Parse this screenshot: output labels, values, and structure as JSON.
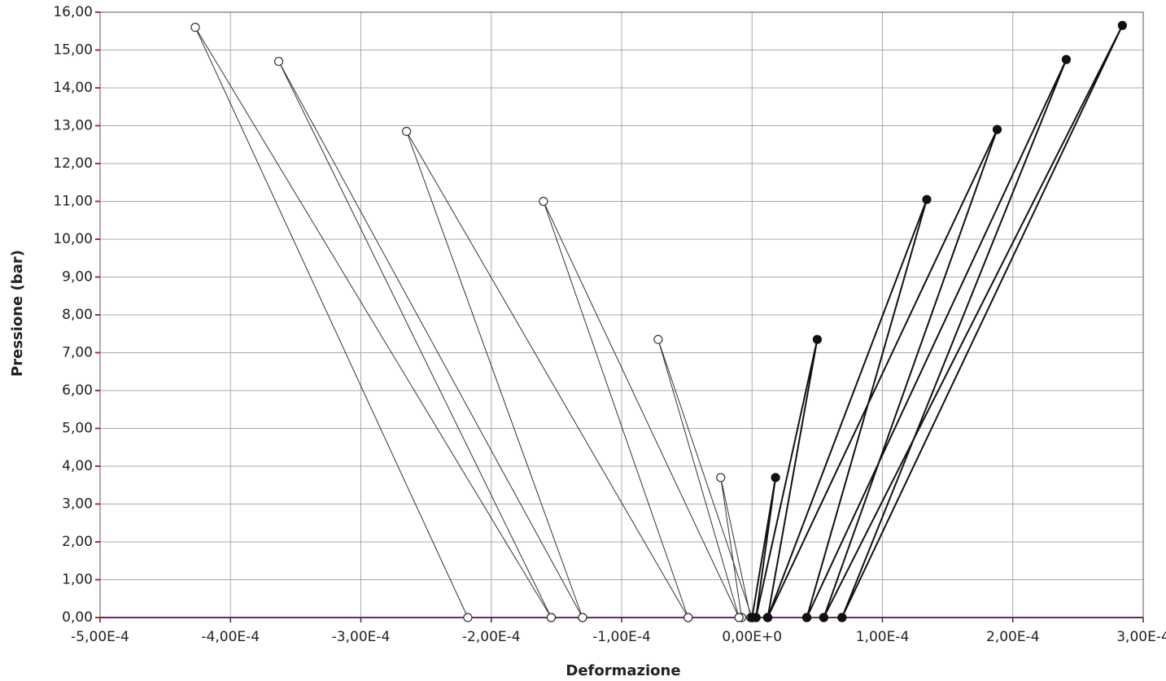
{
  "chart_data": {
    "type": "line",
    "x_label": "Deformazione",
    "y_label": "Pressione (bar)",
    "xlim": [
      -0.0005,
      0.0003
    ],
    "ylim": [
      0,
      16
    ],
    "grid": true,
    "xticks": [
      {
        "value": -0.0005,
        "label": "-5,00E-4"
      },
      {
        "value": -0.0004,
        "label": "-4,00E-4"
      },
      {
        "value": -0.0003,
        "label": "-3,00E-4"
      },
      {
        "value": -0.0002,
        "label": "-2,00E-4"
      },
      {
        "value": -0.0001,
        "label": "-1,00E-4"
      },
      {
        "value": 0,
        "label": "0,00E+0"
      },
      {
        "value": 0.0001,
        "label": "1,00E-4"
      },
      {
        "value": 0.0002,
        "label": "2,00E-4"
      },
      {
        "value": 0.0003,
        "label": "3,00E-4"
      }
    ],
    "yticks": [
      {
        "value": 0,
        "label": "0,00"
      },
      {
        "value": 1,
        "label": "1,00"
      },
      {
        "value": 2,
        "label": "2,00"
      },
      {
        "value": 3,
        "label": "3,00"
      },
      {
        "value": 4,
        "label": "4,00"
      },
      {
        "value": 5,
        "label": "5,00"
      },
      {
        "value": 6,
        "label": "6,00"
      },
      {
        "value": 7,
        "label": "7,00"
      },
      {
        "value": 8,
        "label": "8,00"
      },
      {
        "value": 9,
        "label": "9,00"
      },
      {
        "value": 10,
        "label": "10,00"
      },
      {
        "value": 11,
        "label": "11,00"
      },
      {
        "value": 12,
        "label": "12,00"
      },
      {
        "value": 13,
        "label": "13,00"
      },
      {
        "value": 14,
        "label": "14,00"
      },
      {
        "value": 15,
        "label": "15,00"
      },
      {
        "value": 16,
        "label": "16,00"
      }
    ],
    "series": [
      {
        "color": "#333333",
        "marker": "open",
        "x": [
          -1e-06,
          -2.4e-05,
          -8e-06
        ],
        "values": [
          0,
          3.7,
          0
        ]
      },
      {
        "color": "#333333",
        "marker": "open",
        "x": [
          0,
          -7.2e-05,
          -1e-05
        ],
        "values": [
          0,
          7.35,
          0
        ]
      },
      {
        "color": "#333333",
        "marker": "open",
        "x": [
          -1e-05,
          -0.00016,
          -4.9e-05
        ],
        "values": [
          0,
          11.0,
          0
        ]
      },
      {
        "color": "#333333",
        "marker": "open",
        "x": [
          -4.9e-05,
          -0.000265,
          -0.00013
        ],
        "values": [
          0,
          12.85,
          0
        ]
      },
      {
        "color": "#333333",
        "marker": "open",
        "x": [
          -0.00013,
          -0.000363,
          -0.000154
        ],
        "values": [
          0,
          14.7,
          0
        ]
      },
      {
        "color": "#333333",
        "marker": "open",
        "x": [
          -0.000154,
          -0.000427,
          -0.000218
        ],
        "values": [
          0,
          15.6,
          0
        ]
      },
      {
        "color": "#111111",
        "marker": "filled",
        "x": [
          0,
          1.8e-05,
          3e-06
        ],
        "values": [
          0,
          3.7,
          0
        ]
      },
      {
        "color": "#111111",
        "marker": "filled",
        "x": [
          3e-06,
          5e-05,
          1.2e-05
        ],
        "values": [
          0,
          7.35,
          0
        ]
      },
      {
        "color": "#111111",
        "marker": "filled",
        "x": [
          1.2e-05,
          0.000134,
          4.2e-05
        ],
        "values": [
          0,
          11.05,
          0
        ]
      },
      {
        "color": "#111111",
        "marker": "filled",
        "x": [
          1.2e-05,
          0.000188,
          5.5e-05
        ],
        "values": [
          0,
          12.9,
          0
        ]
      },
      {
        "color": "#111111",
        "marker": "filled",
        "x": [
          4.2e-05,
          0.000241,
          6.9e-05
        ],
        "values": [
          0,
          14.75,
          0
        ]
      },
      {
        "color": "#111111",
        "marker": "filled",
        "x": [
          5.5e-05,
          0.000284,
          6.9e-05
        ],
        "values": [
          0,
          15.65,
          0
        ]
      }
    ]
  }
}
